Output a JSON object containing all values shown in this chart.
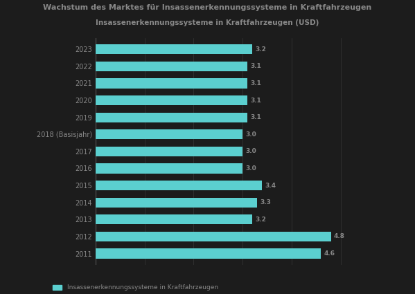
{
  "title_line1": "Wachstum des Marktes für Insassenerkennungssysteme in Kraftfahrzeugen",
  "title_line2": "Insassenerkennungssysteme in Kraftfahrzeugen (USD)",
  "categories": [
    "2023",
    "2022",
    "2021",
    "2020",
    "2019",
    "2018 (Basisjahr)",
    "2017",
    "2016",
    "2015",
    "2014",
    "2013",
    "2012",
    "2011"
  ],
  "values": [
    3.2,
    3.1,
    3.1,
    3.1,
    3.1,
    3.0,
    3.0,
    3.0,
    3.4,
    3.3,
    3.2,
    4.8,
    4.6
  ],
  "bar_color": "#5BCFCF",
  "label_fg": "#888888",
  "bg_color": "#1C1C1C",
  "title_color": "#888888",
  "legend_text": "Insassenerkennungssysteme in Kraftfahrzeugen",
  "legend_color": "#5BCFCF",
  "xlim_max": 5.5
}
